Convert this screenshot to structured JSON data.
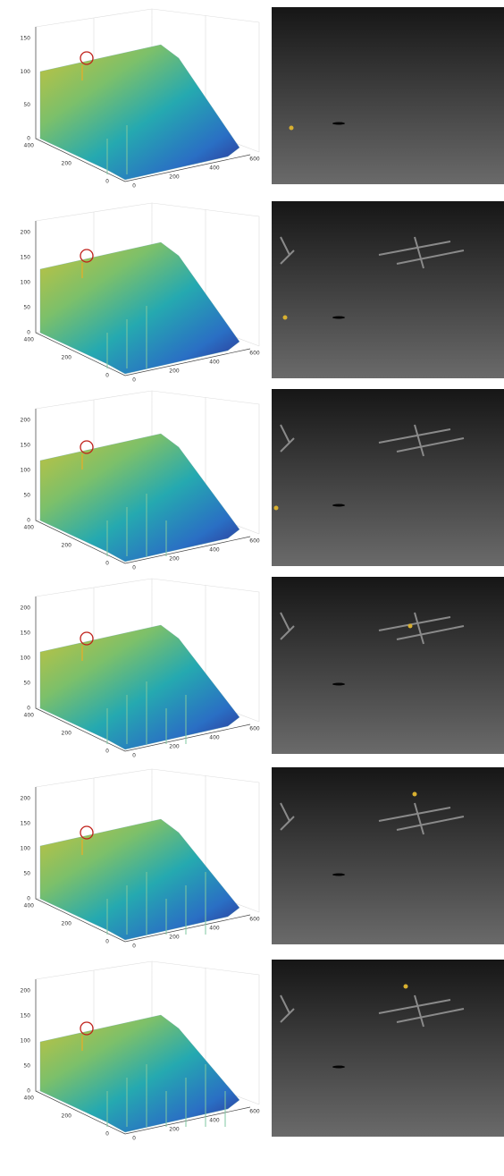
{
  "panels": [
    {
      "z_ticks": [
        "150",
        "100",
        "50",
        "0"
      ],
      "y_ticks": [
        "400",
        "200",
        "0"
      ],
      "x_ticks": [
        "0",
        "200",
        "400",
        "600"
      ]
    },
    {
      "z_ticks": [
        "200",
        "150",
        "100",
        "50",
        "0"
      ],
      "y_ticks": [
        "400",
        "200",
        "0"
      ],
      "x_ticks": [
        "0",
        "200",
        "400",
        "600"
      ]
    },
    {
      "z_ticks": [
        "200",
        "150",
        "100",
        "50",
        "0"
      ],
      "y_ticks": [
        "400",
        "200",
        "0"
      ],
      "x_ticks": [
        "0",
        "200",
        "400",
        "600"
      ]
    },
    {
      "z_ticks": [
        "200",
        "150",
        "100",
        "50",
        "0"
      ],
      "y_ticks": [
        "400",
        "200",
        "0"
      ],
      "x_ticks": [
        "0",
        "200",
        "400",
        "600"
      ]
    },
    {
      "z_ticks": [
        "200",
        "150",
        "100",
        "50",
        "0"
      ],
      "y_ticks": [
        "400",
        "200",
        "0"
      ],
      "x_ticks": [
        "0",
        "200",
        "400",
        "600"
      ]
    },
    {
      "z_ticks": [
        "200",
        "150",
        "100",
        "50",
        "0"
      ],
      "y_ticks": [
        "400",
        "200",
        "0"
      ],
      "x_ticks": [
        "0",
        "200",
        "400",
        "600"
      ]
    }
  ]
}
